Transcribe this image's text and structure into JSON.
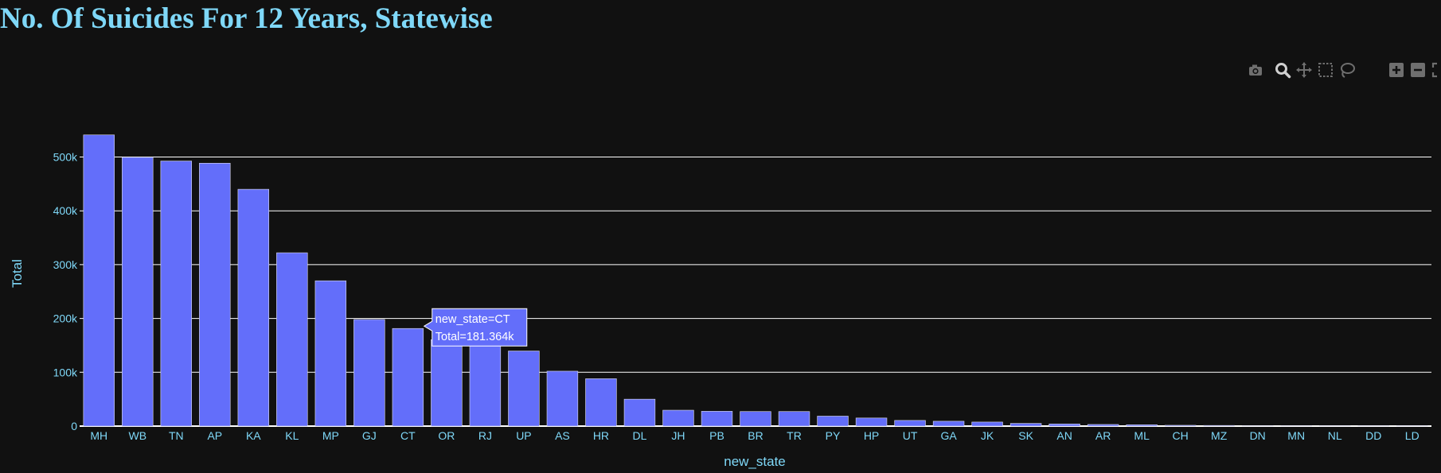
{
  "title": "No. Of Suicides For 12 Years, Statewise",
  "colors": {
    "background": "#111111",
    "bar": "#636efa",
    "bar_outline": "#e0e0f0",
    "accent_text": "#7fd8f8",
    "grid": "#ffffff",
    "modebar_icon": "#6f6f6f"
  },
  "modebar": {
    "icons": [
      "camera-icon",
      "zoom-icon",
      "pan-icon",
      "box-select-icon",
      "lasso-select-icon",
      "zoom-in-icon",
      "zoom-out-icon",
      "autoscale-icon"
    ]
  },
  "chart_data": {
    "type": "bar",
    "title": "No. Of Suicides For 12 Years, Statewise",
    "xlabel": "new_state",
    "ylabel": "Total",
    "ylim": [
      0,
      548000
    ],
    "yticks": [
      0,
      100000,
      200000,
      300000,
      400000,
      500000
    ],
    "ytick_labels": [
      "0",
      "100k",
      "200k",
      "300k",
      "400k",
      "500k"
    ],
    "grid": true,
    "legend": "none",
    "categories": [
      "MH",
      "WB",
      "TN",
      "AP",
      "KA",
      "KL",
      "MP",
      "GJ",
      "CT",
      "OR",
      "RJ",
      "UP",
      "AS",
      "HR",
      "DL",
      "JH",
      "PB",
      "BR",
      "TR",
      "PY",
      "HP",
      "UT",
      "GA",
      "JK",
      "SK",
      "AN",
      "AR",
      "ML",
      "CH",
      "MZ",
      "DN",
      "MN",
      "NL",
      "DD",
      "LD"
    ],
    "values": [
      541000,
      499500,
      492500,
      488500,
      440000,
      322000,
      270000,
      198000,
      181364,
      160500,
      160000,
      139500,
      102000,
      88000,
      50000,
      29500,
      27500,
      27000,
      27000,
      18500,
      15000,
      10500,
      9000,
      7500,
      5000,
      4000,
      3000,
      2500,
      1500,
      1200,
      700,
      300,
      200,
      100,
      50
    ],
    "tooltip": {
      "line1": "new_state=CT",
      "line2": "Total=181.364k"
    }
  }
}
